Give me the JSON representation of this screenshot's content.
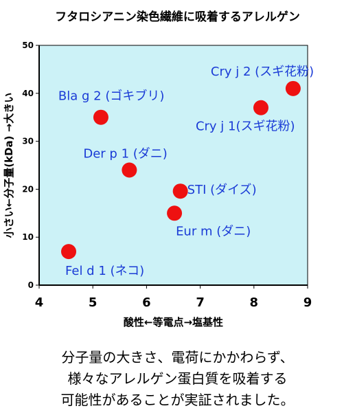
{
  "title": "フタロシアニン染色繊維に吸着するアレルゲン",
  "chart_data": {
    "type": "scatter",
    "title": "フタロシアニン染色繊維に吸着するアレルゲン",
    "xlabel": "酸性←等電点→塩基性",
    "ylabel": "小さい←分子量(kDa) →大きい",
    "xlim": [
      4,
      9
    ],
    "ylim": [
      0,
      50
    ],
    "x_ticks": [
      4,
      5,
      6,
      7,
      8,
      9
    ],
    "y_ticks": [
      0,
      10,
      20,
      30,
      40,
      50
    ],
    "grid": false,
    "legend": "none",
    "colors": {
      "plot_bg": "#ccf2f7",
      "point": "#ee1111",
      "label": "#1a3bd6"
    },
    "points": [
      {
        "label": "Bla g 2 (ゴキブリ)",
        "x": 5.15,
        "y": 35.0
      },
      {
        "label": "Der p 1 (ダニ)",
        "x": 5.68,
        "y": 24.0
      },
      {
        "label": "STI (ダイズ)",
        "x": 6.63,
        "y": 19.6
      },
      {
        "label": "Eur m (ダニ)",
        "x": 6.52,
        "y": 15.0
      },
      {
        "label": "Cry j 1(スギ花粉)",
        "x": 8.13,
        "y": 37.0
      },
      {
        "label": "Cry j 2 (スギ花粉)",
        "x": 8.73,
        "y": 41.0
      },
      {
        "label": "Fel d 1 (ネコ)",
        "x": 4.55,
        "y": 7.0
      }
    ]
  },
  "caption": [
    "分子量の大きさ、電荷にかかわらず、",
    "様々なアレルゲン蛋白質を吸着する",
    "可能性があることが実証されました。"
  ]
}
